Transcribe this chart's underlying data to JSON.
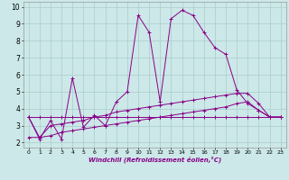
{
  "xlabel": "Windchill (Refroidissement éolien,°C)",
  "xlim": [
    -0.5,
    23.5
  ],
  "ylim": [
    1.7,
    10.3
  ],
  "yticks": [
    2,
    3,
    4,
    5,
    6,
    7,
    8,
    9,
    10
  ],
  "xticks": [
    0,
    1,
    2,
    3,
    4,
    5,
    6,
    7,
    8,
    9,
    10,
    11,
    12,
    13,
    14,
    15,
    16,
    17,
    18,
    19,
    20,
    21,
    22,
    23
  ],
  "bg_color": "#cce8e8",
  "line_color": "#880088",
  "grid_color": "#aacccc",
  "series": [
    [
      3.5,
      2.2,
      3.3,
      2.2,
      5.8,
      2.9,
      3.6,
      3.0,
      4.4,
      5.0,
      9.5,
      8.5,
      4.4,
      9.3,
      9.8,
      9.5,
      8.5,
      7.6,
      7.2,
      5.1,
      4.3,
      3.9,
      3.5,
      3.5
    ],
    [
      3.5,
      2.3,
      3.0,
      3.1,
      3.2,
      3.3,
      3.5,
      3.6,
      3.8,
      3.9,
      4.0,
      4.1,
      4.2,
      4.3,
      4.4,
      4.5,
      4.6,
      4.7,
      4.8,
      4.9,
      4.9,
      4.3,
      3.5,
      3.5
    ],
    [
      2.3,
      2.3,
      2.4,
      2.6,
      2.7,
      2.8,
      2.9,
      3.0,
      3.1,
      3.2,
      3.3,
      3.4,
      3.5,
      3.6,
      3.7,
      3.8,
      3.9,
      4.0,
      4.1,
      4.3,
      4.4,
      3.9,
      3.5,
      3.5
    ],
    [
      3.5,
      3.5,
      3.5,
      3.5,
      3.5,
      3.5,
      3.5,
      3.5,
      3.5,
      3.5,
      3.5,
      3.5,
      3.5,
      3.5,
      3.5,
      3.5,
      3.5,
      3.5,
      3.5,
      3.5,
      3.5,
      3.5,
      3.5,
      3.5
    ]
  ]
}
